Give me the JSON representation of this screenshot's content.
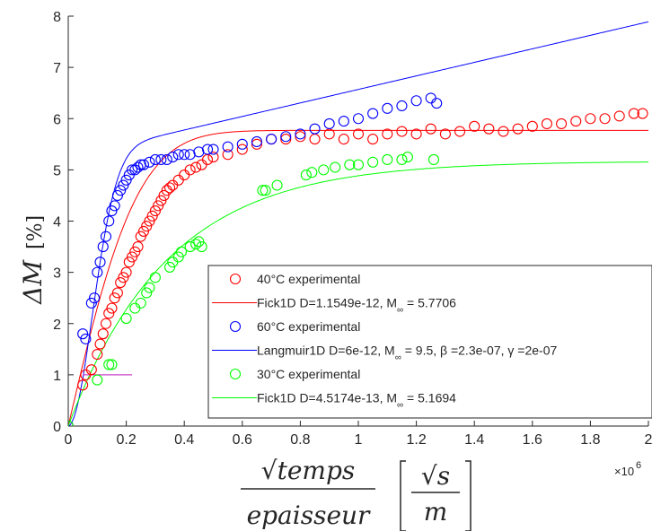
{
  "chart_data": {
    "type": "scatter",
    "title": "",
    "ylabel_main": "ΔM",
    "ylabel_unit": "[%]",
    "xlabel_numerator": "√temps",
    "xlabel_denominator": "epaisseur",
    "xlabel_unit_numerator": "√s",
    "xlabel_unit_denominator": "m",
    "x_multiplier": "×10",
    "x_multiplier_exp": "6",
    "xlim": [
      0,
      2
    ],
    "ylim": [
      0,
      8
    ],
    "xticks": [
      "0",
      "0.2",
      "0.4",
      "0.6",
      "0.8",
      "1",
      "1.2",
      "1.4",
      "1.6",
      "1.8",
      "2"
    ],
    "yticks": [
      "0",
      "1",
      "2",
      "3",
      "4",
      "5",
      "6",
      "7",
      "8"
    ],
    "grid": false,
    "legend_position": "bottom-right",
    "series": [
      {
        "name": "40°C experimental",
        "kind": "markers",
        "color": "#ff0000",
        "x": [
          0,
          0.05,
          0.06,
          0.08,
          0.1,
          0.11,
          0.12,
          0.13,
          0.14,
          0.15,
          0.16,
          0.17,
          0.18,
          0.19,
          0.2,
          0.21,
          0.22,
          0.23,
          0.24,
          0.25,
          0.26,
          0.27,
          0.28,
          0.29,
          0.3,
          0.31,
          0.32,
          0.33,
          0.34,
          0.35,
          0.36,
          0.38,
          0.4,
          0.42,
          0.44,
          0.46,
          0.48,
          0.5,
          0.55,
          0.6,
          0.65,
          0.7,
          0.75,
          0.8,
          0.85,
          0.9,
          0.95,
          1.0,
          1.05,
          1.1,
          1.15,
          1.2,
          1.25,
          1.3,
          1.35,
          1.4,
          1.45,
          1.5,
          1.55,
          1.6,
          1.65,
          1.7,
          1.75,
          1.8,
          1.85,
          1.9,
          1.95,
          1.98
        ],
        "y": [
          0,
          0.8,
          1.0,
          1.1,
          1.4,
          1.6,
          1.8,
          2.0,
          2.2,
          2.3,
          2.5,
          2.6,
          2.8,
          2.9,
          3.0,
          3.2,
          3.3,
          3.4,
          3.5,
          3.7,
          3.8,
          3.9,
          4.0,
          4.1,
          4.2,
          4.3,
          4.4,
          4.5,
          4.6,
          4.65,
          4.7,
          4.8,
          4.9,
          5.0,
          5.05,
          5.1,
          5.2,
          5.25,
          5.3,
          5.4,
          5.5,
          5.6,
          5.6,
          5.65,
          5.6,
          5.7,
          5.6,
          5.7,
          5.6,
          5.7,
          5.75,
          5.7,
          5.8,
          5.7,
          5.75,
          5.85,
          5.8,
          5.75,
          5.8,
          5.85,
          5.9,
          5.9,
          5.95,
          6.0,
          6.0,
          6.05,
          6.1,
          6.1
        ]
      },
      {
        "name": "Fick1D D=1.1549e-12, M∞ = 5.7706",
        "kind": "line",
        "color": "#ff0000",
        "fit": {
          "model": "fick",
          "D": 1.1549e-12,
          "Minf": 5.7706,
          "k": 4.8
        }
      },
      {
        "name": "60°C experimental",
        "kind": "markers",
        "color": "#0000ff",
        "x": [
          0,
          0.05,
          0.06,
          0.08,
          0.09,
          0.1,
          0.11,
          0.12,
          0.13,
          0.14,
          0.15,
          0.16,
          0.17,
          0.18,
          0.19,
          0.2,
          0.21,
          0.22,
          0.23,
          0.24,
          0.25,
          0.26,
          0.28,
          0.3,
          0.32,
          0.34,
          0.36,
          0.38,
          0.4,
          0.42,
          0.45,
          0.48,
          0.5,
          0.55,
          0.6,
          0.65,
          0.7,
          0.75,
          0.8,
          0.85,
          0.9,
          0.95,
          1.0,
          1.05,
          1.1,
          1.15,
          1.2,
          1.25,
          1.27
        ],
        "y": [
          0,
          1.8,
          1.7,
          2.4,
          2.5,
          3.0,
          3.2,
          3.5,
          3.7,
          4.0,
          4.2,
          4.3,
          4.5,
          4.6,
          4.7,
          4.8,
          4.9,
          5.0,
          5.0,
          5.05,
          5.1,
          5.1,
          5.15,
          5.2,
          5.2,
          5.2,
          5.25,
          5.3,
          5.3,
          5.3,
          5.35,
          5.4,
          5.4,
          5.45,
          5.5,
          5.55,
          5.6,
          5.65,
          5.7,
          5.8,
          5.9,
          5.95,
          6.0,
          6.1,
          6.2,
          6.25,
          6.35,
          6.4,
          6.3
        ]
      },
      {
        "name": "Langmuir1D D=6e-12, M∞ = 9.5, β =2.3e-07, γ =2e-07",
        "kind": "line",
        "color": "#0000ff",
        "fit": {
          "model": "langmuir",
          "D": 6e-12,
          "Minf": 9.5,
          "beta": 2.3e-07,
          "gamma": 2e-07
        }
      },
      {
        "name": "30°C experimental",
        "kind": "markers",
        "color": "#00ff00",
        "x": [
          0,
          0.1,
          0.14,
          0.15,
          0.2,
          0.23,
          0.25,
          0.27,
          0.28,
          0.3,
          0.35,
          0.36,
          0.38,
          0.39,
          0.42,
          0.44,
          0.45,
          0.46,
          0.67,
          0.68,
          0.72,
          0.82,
          0.84,
          0.88,
          0.92,
          0.97,
          1.0,
          1.05,
          1.1,
          1.15,
          1.17,
          1.26
        ],
        "y": [
          0,
          0.9,
          1.2,
          1.2,
          2.1,
          2.3,
          2.4,
          2.6,
          2.7,
          2.9,
          3.1,
          3.2,
          3.3,
          3.4,
          3.5,
          3.55,
          3.6,
          3.5,
          4.6,
          4.6,
          4.7,
          4.9,
          4.95,
          5.0,
          5.05,
          5.1,
          5.1,
          5.15,
          5.2,
          5.2,
          5.25,
          5.2
        ]
      },
      {
        "name": "Fick1D D=4.5174e-13, M∞ = 5.1694",
        "kind": "line",
        "color": "#00ff00",
        "fit": {
          "model": "fick",
          "D": 4.5174e-13,
          "Minf": 5.1694,
          "k": 2.8
        }
      }
    ],
    "annotation_segment": {
      "color": "#cc44cc",
      "x": [
        0.05,
        0.22
      ],
      "y": [
        1.0,
        1.0
      ]
    }
  },
  "legend": {
    "entries": [
      {
        "label": "40°C experimental",
        "color": "#ff0000",
        "kind": "marker"
      },
      {
        "label_main": "Fick1D D=1.1549e-12, M",
        "label_sub": "∞",
        "label_rest": " = 5.7706",
        "color": "#ff0000",
        "kind": "line"
      },
      {
        "label": "60°C experimental",
        "color": "#0000ff",
        "kind": "marker"
      },
      {
        "label_main": "Langmuir1D D=6e-12, M",
        "label_sub": "∞",
        "label_rest": " = 9.5, β =2.3e-07, γ =2e-07",
        "color": "#0000ff",
        "kind": "line"
      },
      {
        "label": "30°C experimental",
        "color": "#00ff00",
        "kind": "marker"
      },
      {
        "label_main": "Fick1D D=4.5174e-13, M",
        "label_sub": "∞",
        "label_rest": " = 5.1694",
        "color": "#00ff00",
        "kind": "line"
      }
    ]
  }
}
